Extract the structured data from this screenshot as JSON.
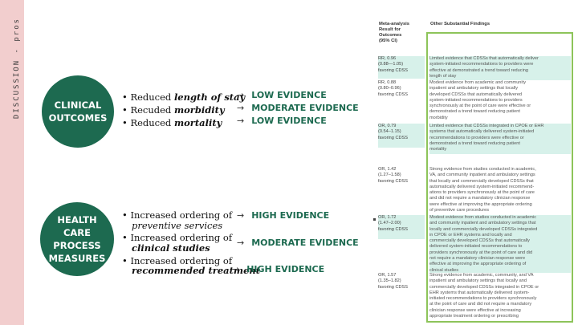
{
  "sidebar": {
    "label": "DISCUSSION - pros"
  },
  "clinical": {
    "circle": "CLINICAL\nOUTCOMES",
    "bullets": [
      {
        "prefix": "• Reduced ",
        "term": "length of stay"
      },
      {
        "prefix": "• Recuded ",
        "term": "morbidity"
      },
      {
        "prefix": "• Reduced ",
        "term": "mortality"
      }
    ],
    "evidence": [
      "LOW EVIDENCE",
      "MODERATE EVIDENCE",
      "LOW EVIDENCE"
    ]
  },
  "process": {
    "circle": "HEALTH\nCARE\nPROCESS\nMEASURES",
    "bullets": [
      {
        "prefix": "• Increased ordering of",
        "term": "preventive services"
      },
      {
        "prefix": "• Increased ordering of",
        "term": "clinical studies"
      },
      {
        "prefix": "• Increased ordering of",
        "term": "recommended treatment"
      }
    ],
    "evidence": [
      "HIGH EVIDENCE",
      "MODERATE EVIDENCE",
      "HIGH EVIDENCE"
    ]
  },
  "arrow": "→",
  "table": {
    "head_left": "Meta-analysis\nResult for\nOutcomes\n(95% CI)",
    "head_right": "Other Substantial Findings",
    "left_cells": [
      "RR, 0.96\n(0.88—1.05)\nfavoring CDSS",
      "RR, 0.88\n(0.80–0.96)\nfavoring CDSS",
      "OR, 0.79\n(0.54–1.15)\nfavoring CDSS",
      "OR, 1.42\n(1.27–1.58)\nfavoring CDSS",
      "OR, 1.72\n(1.47–2.00)\nfavoring CDSS",
      "OR, 1.57\n(1.35–1.82)\nfavoring CDSS"
    ],
    "right_cells": [
      "Limited evidence that CDSSs that automatically deliver\nsystem-initiated recommendations to providers were\neffective at demonstrated a trend toward reducing\nlength of stay",
      "Modest evidence from academic and community\ninpatient and ambulatory settings that locally\ndeveloped CDSSs that automatically delivered\nsystem-initiated recommendations to providers\nsynchronously at the point of care were effective or\ndemonstrated a trend toward reducing patient\nmorbidity",
      "Limited evidence that CDSSs integrated in CPOE or EHR\nsystems that automatically delivered system-initiated\nrecommendations to providers were effective or\ndemonstrated a trend toward reducing patient\nmortality",
      "Strong evidence from studies conducted in academic,\nVA, and community inpatient and ambulatory settings\nthat locally and commercially developed CDSSs that\nautomatically delivered system-initiated recommend-\nations to providers synchronously at the point of care\nand did not require a mandatory clinician response\nwere effective at improving the appropriate ordering\nof preventive care procedures",
      "Modest evidence from studies conducted in academic\nand community inpatient and ambulatory settings that\nlocally and commercially developed CDSSs integrated\nin CPOE or EHR systems and locally and\ncommercially developed CDSSs that automatically\ndelivered system-initiated recommendations to\nproviders synchronously at the point of care and did\nnot require a mandatory clinician response were\neffective at improving the appropriate ordering of\nclinical studies",
      "Strong evidence from academic, community, and VA\ninpatient and ambulatory settings that locally and\ncommercially developed CDSSs integrated in CPOE or\nEHR systems that automatically delivered system-\ninitiated recommendations to providers synchronously\nat the point of care and did not require a mandatory\nclinician response were effective at increasing\nappropriate treatment ordering or prescribing"
    ]
  }
}
